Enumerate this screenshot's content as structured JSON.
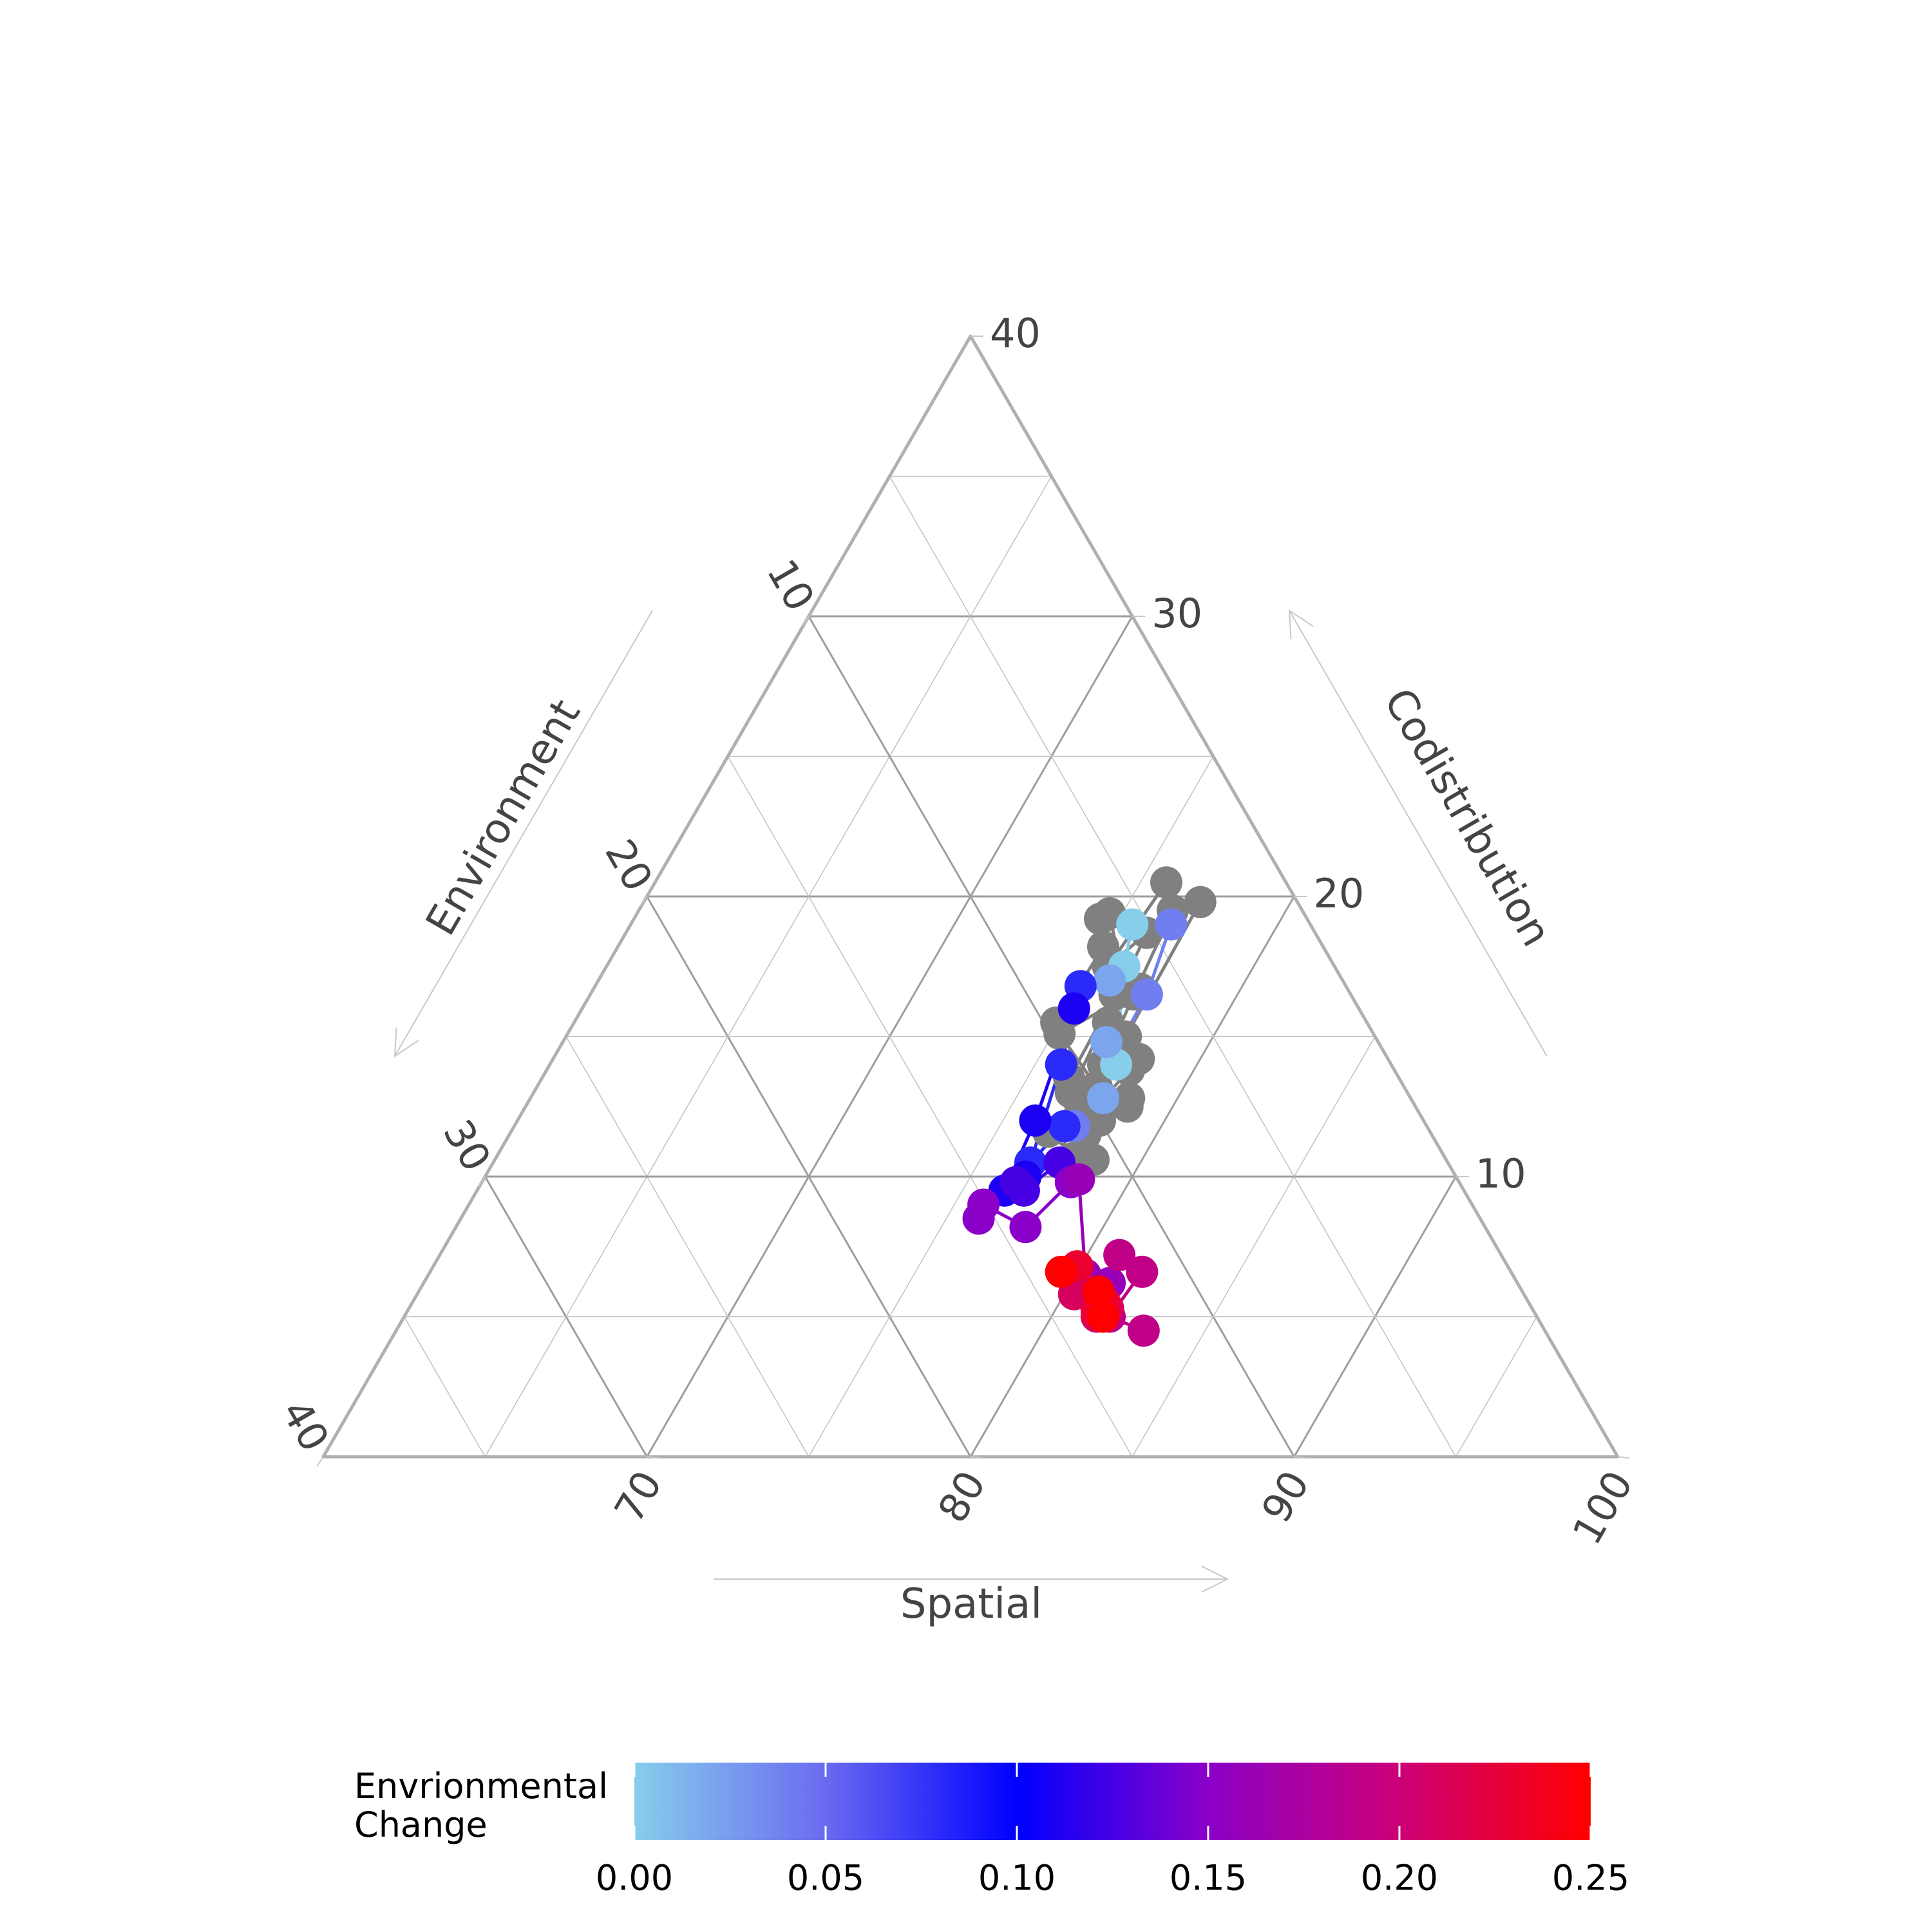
{
  "chart_data": {
    "type": "scatter",
    "subtype": "ternary",
    "axes": {
      "bottom": {
        "label": "Spatial",
        "min": 60,
        "max": 100,
        "ticks": [
          70,
          80,
          90,
          100
        ],
        "tick_labels": [
          "70",
          "80",
          "90",
          "100"
        ]
      },
      "left": {
        "label": "Environment",
        "min": 0,
        "max": 40,
        "ticks": [
          10,
          20,
          30,
          40
        ],
        "tick_labels": [
          "10",
          "20",
          "30",
          "40"
        ]
      },
      "right": {
        "label": "Codistribution",
        "min": 0,
        "max": 40,
        "ticks": [
          10,
          20,
          30,
          40
        ],
        "tick_labels": [
          "10",
          "20",
          "30",
          "40"
        ]
      }
    },
    "grid": true,
    "colorbar": {
      "title_line1": "Envrionmental",
      "title_line2": "Change",
      "min": 0,
      "max": 0.25,
      "ticks": [
        0,
        0.05,
        0.1,
        0.15,
        0.2,
        0.25
      ],
      "tick_labels": [
        "0.00",
        "0.05",
        "0.10",
        "0.15",
        "0.20",
        "0.25"
      ],
      "colors": [
        "#87ceeb",
        "#6a6af0",
        "#0000ff",
        "#8b00c8",
        "#cc0077",
        "#ff0000"
      ]
    },
    "uncolored_color": "#808080",
    "series": [
      {
        "color_value": null,
        "points": [
          [
            75.8,
            20.5
          ],
          [
            75.5,
            17.5
          ],
          [
            76.1,
            18.7
          ],
          [
            76.6,
            13.0
          ],
          [
            77.6,
            10.5
          ],
          [
            78.0,
            12.0
          ]
        ]
      },
      {
        "color_value": null,
        "points": [
          [
            75.0,
            18.2
          ],
          [
            74.9,
            15.5
          ],
          [
            76.9,
            12.8
          ],
          [
            78.5,
            10.6
          ]
        ]
      },
      {
        "color_value": null,
        "points": [
          [
            74.6,
            19.4
          ],
          [
            76.2,
            17.0
          ],
          [
            76.3,
            13.5
          ],
          [
            77.8,
            11.5
          ]
        ]
      },
      {
        "color_value": null,
        "points": [
          [
            74.4,
            19.2
          ],
          [
            76.9,
            16.7
          ],
          [
            75.2,
            15.1
          ],
          [
            77.3,
            13.2
          ],
          [
            78.6,
            12.5
          ]
        ]
      },
      {
        "color_value": null,
        "points": [
          [
            76.5,
            19.5
          ],
          [
            76.8,
            16.5
          ],
          [
            77.1,
            14.0
          ],
          [
            76.6,
            11.6
          ],
          [
            77.9,
            10.7
          ]
        ]
      },
      {
        "color_value": null,
        "points": [
          [
            77.2,
            19.8
          ],
          [
            77.3,
            15.0
          ],
          [
            78.5,
            12.8
          ],
          [
            78.1,
            14.2
          ]
        ]
      },
      {
        "color_value": null,
        "points": [
          [
            76.2,
            16.5
          ],
          [
            76.5,
            15.5
          ],
          [
            77.5,
            12.0
          ],
          [
            78.0,
            13.8
          ]
        ]
      },
      {
        "color_value": 0.0,
        "points": [
          [
            75.5,
            19.0
          ],
          [
            76.0,
            17.5
          ],
          [
            77.5,
            14.0
          ]
        ]
      },
      {
        "color_value": 0.02,
        "points": [
          [
            75.8,
            17.0
          ],
          [
            76.8,
            14.8
          ],
          [
            77.7,
            12.8
          ]
        ]
      },
      {
        "color_value": 0.04,
        "points": [
          [
            76.7,
            19.0
          ],
          [
            77.2,
            16.5
          ],
          [
            77.3,
            11.8
          ]
        ]
      },
      {
        "color_value": 0.08,
        "points": [
          [
            75.0,
            16.8
          ],
          [
            75.8,
            14.0
          ],
          [
            76.6,
            10.5
          ],
          [
            77.0,
            11.8
          ]
        ]
      },
      {
        "color_value": 0.11,
        "points": [
          [
            75.2,
            16.0
          ],
          [
            76.0,
            12.0
          ],
          [
            76.3,
            9.5
          ],
          [
            76.7,
            10.0
          ]
        ]
      },
      {
        "color_value": 0.125,
        "points": [
          [
            76.5,
            9.8
          ],
          [
            76.9,
            9.5
          ],
          [
            77.5,
            10.5
          ]
        ]
      },
      {
        "color_value": 0.15,
        "points": [
          [
            76.0,
            8.5
          ],
          [
            75.9,
            9.0
          ],
          [
            77.6,
            8.2
          ],
          [
            78.2,
            9.8
          ]
        ]
      },
      {
        "color_value": 0.16,
        "points": [
          [
            78.4,
            9.9
          ],
          [
            80.3,
            6.5
          ],
          [
            81.0,
            5.6
          ],
          [
            81.2,
            6.2
          ]
        ]
      },
      {
        "color_value": 0.19,
        "points": [
          [
            81.0,
            7.2
          ],
          [
            82.0,
            6.6
          ],
          [
            81.8,
            5.0
          ],
          [
            83.1,
            4.5
          ]
        ]
      },
      {
        "color_value": 0.21,
        "points": [
          [
            80.3,
            5.8
          ],
          [
            81.2,
            5.5
          ],
          [
            81.6,
            5.3
          ],
          [
            81.4,
            5.0
          ]
        ]
      },
      {
        "color_value": 0.23,
        "points": [
          [
            79.9,
            6.8
          ],
          [
            81.4,
            5.5
          ],
          [
            81.3,
            5.2
          ],
          [
            81.5,
            5.1
          ]
        ]
      },
      {
        "color_value": 0.25,
        "points": [
          [
            79.5,
            6.6
          ],
          [
            81.0,
            5.9
          ],
          [
            81.6,
            5.0
          ]
        ]
      }
    ]
  }
}
